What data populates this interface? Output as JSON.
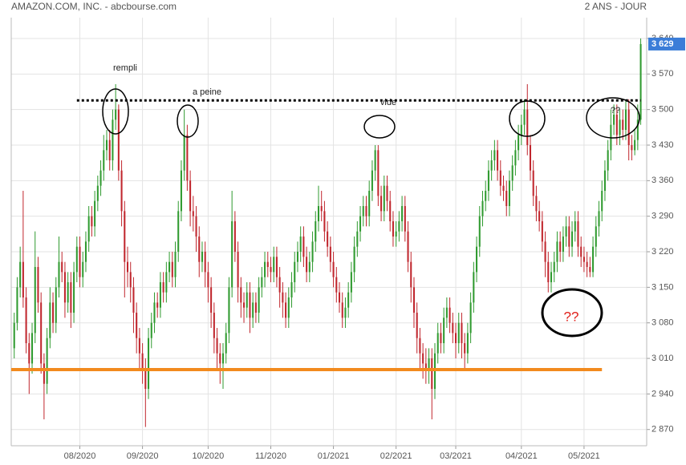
{
  "chart_data": {
    "type": "candlestick",
    "title": "AMAZON.COM, INC. - abcbourse.com",
    "subtitle": "2 ANS - JOUR",
    "up_color": "#2f9a2f",
    "down_color": "#c0262d",
    "grid": true,
    "ylim": [
      2838,
      3681
    ],
    "yticks": [
      {
        "value": 2870,
        "label": "2 870"
      },
      {
        "value": 2940,
        "label": "2 940"
      },
      {
        "value": 3010,
        "label": "3 010"
      },
      {
        "value": 3080,
        "label": "3 080"
      },
      {
        "value": 3150,
        "label": "3 150"
      },
      {
        "value": 3220,
        "label": "3 220"
      },
      {
        "value": 3290,
        "label": "3 290"
      },
      {
        "value": 3360,
        "label": "3 360"
      },
      {
        "value": 3430,
        "label": "3 430"
      },
      {
        "value": 3500,
        "label": "3 500"
      },
      {
        "value": 3570,
        "label": "3 570"
      },
      {
        "value": 3640,
        "label": "3 640"
      }
    ],
    "xlim": [
      -1,
      212
    ],
    "xticks": [
      {
        "value": 22,
        "label": "08/2020"
      },
      {
        "value": 43,
        "label": "09/2020"
      },
      {
        "value": 65,
        "label": "10/2020"
      },
      {
        "value": 86,
        "label": "11/2020"
      },
      {
        "value": 107,
        "label": "01/2021"
      },
      {
        "value": 128,
        "label": "02/2021"
      },
      {
        "value": 148,
        "label": "03/2021"
      },
      {
        "value": 170,
        "label": "04/2021"
      },
      {
        "value": 191,
        "label": "05/2021"
      }
    ],
    "last_price": {
      "value": 3629,
      "label": "3 629",
      "color": "#3b7dd8"
    },
    "levels": [
      {
        "value": 3518,
        "from": 21,
        "to": 210,
        "color": "#000000",
        "dashed": true
      },
      {
        "value": 2988,
        "from": -1,
        "to": 197,
        "color": "#f28a1e",
        "dashed": false
      }
    ],
    "annotations": [
      {
        "text": "rempli"
      },
      {
        "text": "a peine"
      },
      {
        "text": "vide"
      },
      {
        "text": "??"
      },
      {
        "text": "??",
        "color": "#e0201a"
      }
    ],
    "candles": [
      [
        3030,
        3100,
        3010,
        3080
      ],
      [
        3080,
        3170,
        3065,
        3150
      ],
      [
        3150,
        3230,
        3130,
        3200
      ],
      [
        3200,
        3340,
        3110,
        3130
      ],
      [
        3130,
        3150,
        3020,
        3040
      ],
      [
        3040,
        3060,
        2940,
        3000
      ],
      [
        3000,
        3080,
        2980,
        3060
      ],
      [
        3060,
        3260,
        3040,
        3190
      ],
      [
        3190,
        3210,
        3100,
        3120
      ],
      [
        3120,
        3140,
        2980,
        3000
      ],
      [
        3000,
        3020,
        2890,
        2960
      ],
      [
        2960,
        3070,
        2940,
        3050
      ],
      [
        3050,
        3150,
        3030,
        3120
      ],
      [
        3120,
        3140,
        3060,
        3080
      ],
      [
        3080,
        3170,
        3060,
        3150
      ],
      [
        3150,
        3250,
        3130,
        3200
      ],
      [
        3200,
        3220,
        3160,
        3180
      ],
      [
        3180,
        3200,
        3090,
        3120
      ],
      [
        3120,
        3180,
        3100,
        3160
      ],
      [
        3160,
        3180,
        3070,
        3100
      ],
      [
        3100,
        3200,
        3080,
        3180
      ],
      [
        3180,
        3250,
        3160,
        3230
      ],
      [
        3230,
        3250,
        3150,
        3170
      ],
      [
        3170,
        3220,
        3150,
        3200
      ],
      [
        3200,
        3260,
        3180,
        3240
      ],
      [
        3240,
        3310,
        3220,
        3290
      ],
      [
        3290,
        3310,
        3250,
        3270
      ],
      [
        3270,
        3340,
        3250,
        3320
      ],
      [
        3320,
        3370,
        3300,
        3350
      ],
      [
        3350,
        3400,
        3330,
        3380
      ],
      [
        3380,
        3450,
        3360,
        3420
      ],
      [
        3420,
        3460,
        3400,
        3440
      ],
      [
        3440,
        3460,
        3380,
        3400
      ],
      [
        3400,
        3500,
        3380,
        3480
      ],
      [
        3480,
        3550,
        3460,
        3500
      ],
      [
        3500,
        3510,
        3360,
        3380
      ],
      [
        3380,
        3400,
        3270,
        3300
      ],
      [
        3300,
        3320,
        3130,
        3200
      ],
      [
        3200,
        3230,
        3150,
        3180
      ],
      [
        3180,
        3200,
        3120,
        3150
      ],
      [
        3150,
        3170,
        3060,
        3100
      ],
      [
        3100,
        3120,
        3020,
        3050
      ],
      [
        3050,
        3070,
        2990,
        3020
      ],
      [
        3020,
        3040,
        2960,
        2990
      ],
      [
        2990,
        3010,
        2875,
        2950
      ],
      [
        2950,
        3070,
        2930,
        3050
      ],
      [
        3050,
        3100,
        3030,
        3080
      ],
      [
        3080,
        3140,
        3060,
        3120
      ],
      [
        3120,
        3140,
        3090,
        3110
      ],
      [
        3110,
        3180,
        3090,
        3160
      ],
      [
        3160,
        3180,
        3120,
        3140
      ],
      [
        3140,
        3200,
        3120,
        3180
      ],
      [
        3180,
        3220,
        3160,
        3200
      ],
      [
        3200,
        3220,
        3150,
        3170
      ],
      [
        3170,
        3240,
        3150,
        3220
      ],
      [
        3220,
        3320,
        3200,
        3300
      ],
      [
        3300,
        3400,
        3280,
        3380
      ],
      [
        3380,
        3500,
        3360,
        3450
      ],
      [
        3450,
        3470,
        3340,
        3360
      ],
      [
        3360,
        3380,
        3270,
        3300
      ],
      [
        3300,
        3330,
        3260,
        3290
      ],
      [
        3290,
        3310,
        3220,
        3250
      ],
      [
        3250,
        3270,
        3170,
        3200
      ],
      [
        3200,
        3240,
        3180,
        3220
      ],
      [
        3220,
        3240,
        3150,
        3180
      ],
      [
        3180,
        3200,
        3120,
        3150
      ],
      [
        3150,
        3170,
        3070,
        3100
      ],
      [
        3100,
        3120,
        3020,
        3050
      ],
      [
        3050,
        3070,
        2990,
        3020
      ],
      [
        3020,
        3040,
        2960,
        3000
      ],
      [
        3000,
        3040,
        2950,
        3020
      ],
      [
        3020,
        3080,
        3000,
        3060
      ],
      [
        3060,
        3170,
        3040,
        3150
      ],
      [
        3150,
        3340,
        3130,
        3280
      ],
      [
        3280,
        3300,
        3200,
        3220
      ],
      [
        3220,
        3240,
        3120,
        3150
      ],
      [
        3150,
        3170,
        3090,
        3120
      ],
      [
        3120,
        3140,
        3080,
        3110
      ],
      [
        3110,
        3160,
        3090,
        3140
      ],
      [
        3140,
        3160,
        3060,
        3090
      ],
      [
        3090,
        3140,
        3070,
        3120
      ],
      [
        3120,
        3140,
        3080,
        3100
      ],
      [
        3100,
        3170,
        3080,
        3150
      ],
      [
        3150,
        3190,
        3130,
        3170
      ],
      [
        3170,
        3220,
        3150,
        3200
      ],
      [
        3200,
        3220,
        3170,
        3190
      ],
      [
        3190,
        3210,
        3160,
        3180
      ],
      [
        3180,
        3230,
        3160,
        3210
      ],
      [
        3210,
        3230,
        3150,
        3170
      ],
      [
        3170,
        3190,
        3110,
        3140
      ],
      [
        3140,
        3160,
        3090,
        3120
      ],
      [
        3120,
        3140,
        3070,
        3090
      ],
      [
        3090,
        3150,
        3070,
        3130
      ],
      [
        3130,
        3180,
        3110,
        3160
      ],
      [
        3160,
        3220,
        3140,
        3200
      ],
      [
        3200,
        3240,
        3180,
        3220
      ],
      [
        3220,
        3270,
        3200,
        3250
      ],
      [
        3250,
        3270,
        3190,
        3210
      ],
      [
        3210,
        3230,
        3160,
        3180
      ],
      [
        3180,
        3220,
        3160,
        3200
      ],
      [
        3200,
        3260,
        3180,
        3240
      ],
      [
        3240,
        3300,
        3220,
        3280
      ],
      [
        3280,
        3350,
        3260,
        3310
      ],
      [
        3310,
        3340,
        3280,
        3300
      ],
      [
        3300,
        3320,
        3240,
        3260
      ],
      [
        3260,
        3280,
        3210,
        3230
      ],
      [
        3230,
        3250,
        3180,
        3200
      ],
      [
        3200,
        3220,
        3150,
        3170
      ],
      [
        3170,
        3190,
        3120,
        3140
      ],
      [
        3140,
        3160,
        3100,
        3120
      ],
      [
        3120,
        3140,
        3070,
        3090
      ],
      [
        3090,
        3130,
        3070,
        3110
      ],
      [
        3110,
        3160,
        3090,
        3140
      ],
      [
        3140,
        3200,
        3120,
        3180
      ],
      [
        3180,
        3250,
        3160,
        3230
      ],
      [
        3230,
        3280,
        3210,
        3260
      ],
      [
        3260,
        3310,
        3240,
        3290
      ],
      [
        3290,
        3330,
        3270,
        3310
      ],
      [
        3310,
        3330,
        3270,
        3290
      ],
      [
        3290,
        3360,
        3270,
        3340
      ],
      [
        3340,
        3400,
        3320,
        3380
      ],
      [
        3380,
        3430,
        3360,
        3420
      ],
      [
        3420,
        3430,
        3310,
        3330
      ],
      [
        3330,
        3350,
        3280,
        3300
      ],
      [
        3300,
        3370,
        3280,
        3350
      ],
      [
        3350,
        3370,
        3300,
        3320
      ],
      [
        3320,
        3340,
        3260,
        3280
      ],
      [
        3280,
        3300,
        3230,
        3250
      ],
      [
        3250,
        3280,
        3230,
        3260
      ],
      [
        3260,
        3300,
        3240,
        3280
      ],
      [
        3280,
        3330,
        3260,
        3310
      ],
      [
        3310,
        3330,
        3240,
        3260
      ],
      [
        3260,
        3280,
        3180,
        3200
      ],
      [
        3200,
        3220,
        3120,
        3150
      ],
      [
        3150,
        3170,
        3070,
        3100
      ],
      [
        3100,
        3120,
        3020,
        3050
      ],
      [
        3050,
        3070,
        2990,
        3020
      ],
      [
        3020,
        3040,
        2970,
        3000
      ],
      [
        3000,
        3030,
        2960,
        2990
      ],
      [
        2990,
        3030,
        2960,
        3010
      ],
      [
        3010,
        3030,
        2890,
        2950
      ],
      [
        2950,
        3040,
        2930,
        3020
      ],
      [
        3020,
        3080,
        3000,
        3060
      ],
      [
        3060,
        3080,
        3020,
        3040
      ],
      [
        3040,
        3110,
        3020,
        3090
      ],
      [
        3090,
        3130,
        3070,
        3110
      ],
      [
        3110,
        3130,
        3060,
        3080
      ],
      [
        3080,
        3100,
        3040,
        3060
      ],
      [
        3060,
        3080,
        3010,
        3040
      ],
      [
        3040,
        3100,
        3020,
        3080
      ],
      [
        3080,
        3100,
        3010,
        3040
      ],
      [
        3040,
        3060,
        2990,
        3020
      ],
      [
        3020,
        3080,
        3000,
        3060
      ],
      [
        3060,
        3140,
        3040,
        3120
      ],
      [
        3120,
        3200,
        3100,
        3180
      ],
      [
        3180,
        3250,
        3160,
        3230
      ],
      [
        3230,
        3310,
        3210,
        3290
      ],
      [
        3290,
        3340,
        3270,
        3320
      ],
      [
        3320,
        3360,
        3300,
        3340
      ],
      [
        3340,
        3400,
        3320,
        3380
      ],
      [
        3380,
        3420,
        3360,
        3400
      ],
      [
        3400,
        3440,
        3380,
        3420
      ],
      [
        3420,
        3440,
        3360,
        3380
      ],
      [
        3380,
        3400,
        3330,
        3350
      ],
      [
        3350,
        3370,
        3320,
        3340
      ],
      [
        3340,
        3360,
        3290,
        3310
      ],
      [
        3310,
        3380,
        3290,
        3360
      ],
      [
        3360,
        3410,
        3340,
        3390
      ],
      [
        3390,
        3440,
        3370,
        3420
      ],
      [
        3420,
        3470,
        3400,
        3450
      ],
      [
        3450,
        3490,
        3430,
        3470
      ],
      [
        3470,
        3520,
        3450,
        3500
      ],
      [
        3500,
        3550,
        3410,
        3430
      ],
      [
        3430,
        3450,
        3360,
        3380
      ],
      [
        3380,
        3400,
        3310,
        3330
      ],
      [
        3330,
        3350,
        3280,
        3300
      ],
      [
        3300,
        3320,
        3260,
        3280
      ],
      [
        3280,
        3300,
        3220,
        3240
      ],
      [
        3240,
        3260,
        3170,
        3200
      ],
      [
        3200,
        3220,
        3140,
        3160
      ],
      [
        3160,
        3200,
        3140,
        3180
      ],
      [
        3180,
        3220,
        3160,
        3200
      ],
      [
        3200,
        3260,
        3180,
        3240
      ],
      [
        3240,
        3260,
        3200,
        3220
      ],
      [
        3220,
        3270,
        3200,
        3250
      ],
      [
        3250,
        3290,
        3230,
        3270
      ],
      [
        3270,
        3290,
        3210,
        3230
      ],
      [
        3230,
        3280,
        3210,
        3260
      ],
      [
        3260,
        3300,
        3240,
        3280
      ],
      [
        3280,
        3300,
        3210,
        3230
      ],
      [
        3230,
        3250,
        3190,
        3210
      ],
      [
        3210,
        3230,
        3180,
        3200
      ],
      [
        3200,
        3220,
        3170,
        3190
      ],
      [
        3190,
        3210,
        3170,
        3180
      ],
      [
        3180,
        3250,
        3170,
        3230
      ],
      [
        3230,
        3290,
        3210,
        3270
      ],
      [
        3270,
        3320,
        3250,
        3300
      ],
      [
        3300,
        3360,
        3280,
        3340
      ],
      [
        3340,
        3400,
        3320,
        3380
      ],
      [
        3380,
        3440,
        3360,
        3420
      ],
      [
        3420,
        3500,
        3400,
        3470
      ],
      [
        3470,
        3510,
        3450,
        3490
      ],
      [
        3490,
        3510,
        3430,
        3450
      ],
      [
        3450,
        3500,
        3430,
        3480
      ],
      [
        3480,
        3500,
        3440,
        3460
      ],
      [
        3460,
        3520,
        3440,
        3500
      ],
      [
        3500,
        3520,
        3400,
        3430
      ],
      [
        3430,
        3450,
        3400,
        3420
      ],
      [
        3420,
        3460,
        3410,
        3440
      ],
      [
        3440,
        3510,
        3420,
        3480
      ],
      [
        3480,
        3640,
        3470,
        3629
      ]
    ]
  }
}
